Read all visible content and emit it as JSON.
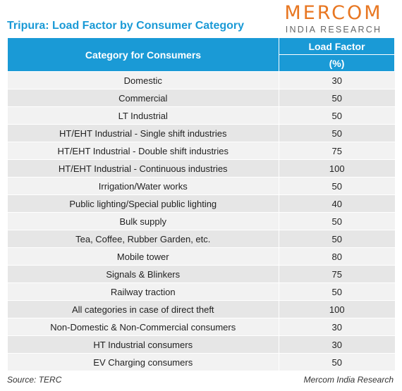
{
  "title": "Tripura: Load Factor by Consumer Category",
  "logo": {
    "main": "MERCOM",
    "sub": "INDIA RESEARCH"
  },
  "table": {
    "header_category": "Category for Consumers",
    "header_value": "Load Factor",
    "header_unit": "(%)",
    "rows": [
      {
        "category": "Domestic",
        "value": "30"
      },
      {
        "category": "Commercial",
        "value": "50"
      },
      {
        "category": "LT Industrial",
        "value": "50"
      },
      {
        "category": "HT/EHT Industrial - Single shift industries",
        "value": "50"
      },
      {
        "category": "HT/EHT Industrial - Double shift industries",
        "value": "75"
      },
      {
        "category": "HT/EHT Industrial - Continuous industries",
        "value": "100"
      },
      {
        "category": "Irrigation/Water works",
        "value": "50"
      },
      {
        "category": "Public lighting/Special public lighting",
        "value": "40"
      },
      {
        "category": "Bulk supply",
        "value": "50"
      },
      {
        "category": "Tea, Coffee, Rubber Garden, etc.",
        "value": "50"
      },
      {
        "category": "Mobile tower",
        "value": "80"
      },
      {
        "category": "Signals & Blinkers",
        "value": "75"
      },
      {
        "category": "Railway traction",
        "value": "50"
      },
      {
        "category": "All categories in case of direct theft",
        "value": "100"
      },
      {
        "category": "Non-Domestic & Non-Commercial consumers",
        "value": "30"
      },
      {
        "category": "HT Industrial consumers",
        "value": "30"
      },
      {
        "category": "EV Charging consumers",
        "value": "50"
      }
    ]
  },
  "footer": {
    "source": "Source: TERC",
    "credit": "Mercom India Research"
  }
}
